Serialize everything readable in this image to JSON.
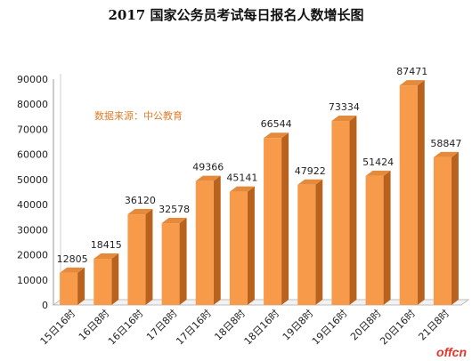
{
  "chart_data": {
    "type": "bar",
    "title": "2017 国家公务员考试每日报名人数增长图",
    "annotation": "数据来源：中公教育",
    "categories": [
      "15日16时",
      "16日8时",
      "16日16时",
      "17日8时",
      "17日16时",
      "18日8时",
      "18日16时",
      "19日8时",
      "19日16时",
      "20日8时",
      "20日16时",
      "21日8时"
    ],
    "values": [
      12805,
      18415,
      36120,
      32578,
      49366,
      45141,
      66544,
      47922,
      73334,
      51424,
      87471,
      58847
    ],
    "yticks": [
      0,
      10000,
      20000,
      30000,
      40000,
      50000,
      60000,
      70000,
      80000,
      90000
    ],
    "ylim": [
      0,
      90000
    ],
    "xlabel": "",
    "ylabel": "",
    "grid": false,
    "legend": "none",
    "colors": {
      "bar_front": "#f79b4b",
      "bar_side": "#b8621d",
      "bar_top": "#e58a3b",
      "label": "#222222"
    }
  },
  "watermark": "offcn"
}
